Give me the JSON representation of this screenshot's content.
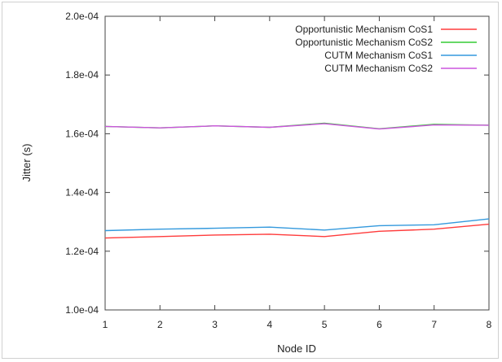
{
  "chart_data": {
    "type": "line",
    "xlabel": "Node ID",
    "ylabel": "Jitter (s)",
    "xlim": [
      1,
      8
    ],
    "ylim": [
      0.0001,
      0.0002
    ],
    "x_ticks": [
      "1",
      "2",
      "3",
      "4",
      "5",
      "6",
      "7",
      "8"
    ],
    "y_ticks": [
      {
        "value": 0.0001,
        "label": "1.0e-04"
      },
      {
        "value": 0.00012,
        "label": "1.2e-04"
      },
      {
        "value": 0.00014,
        "label": "1.4e-04"
      },
      {
        "value": 0.00016,
        "label": "1.6e-04"
      },
      {
        "value": 0.00018,
        "label": "1.8e-04"
      },
      {
        "value": 0.0002,
        "label": "2.0e-04"
      }
    ],
    "grid": false,
    "legend_position": "top-right",
    "x": [
      1,
      2,
      3,
      4,
      5,
      6,
      7,
      8
    ],
    "series": [
      {
        "name": "Opportunistic Mechanism CoS1",
        "color": "#ff3b3b",
        "values": [
          0.0001245,
          0.000125,
          0.0001255,
          0.0001258,
          0.000125,
          0.0001268,
          0.0001275,
          0.0001292
        ]
      },
      {
        "name": "Opportunistic Mechanism CoS2",
        "color": "#33cc33",
        "values": [
          0.0001625,
          0.000162,
          0.0001627,
          0.0001622,
          0.0001636,
          0.0001617,
          0.0001632,
          0.0001629
        ]
      },
      {
        "name": "CUTM Mechanism CoS1",
        "color": "#3399dd",
        "values": [
          0.000127,
          0.0001275,
          0.0001278,
          0.0001282,
          0.0001272,
          0.0001287,
          0.000129,
          0.000131
        ]
      },
      {
        "name": "CUTM Mechanism CoS2",
        "color": "#cc55dd",
        "values": [
          0.0001625,
          0.000162,
          0.0001627,
          0.0001622,
          0.0001634,
          0.0001616,
          0.000163,
          0.0001629
        ]
      }
    ]
  }
}
